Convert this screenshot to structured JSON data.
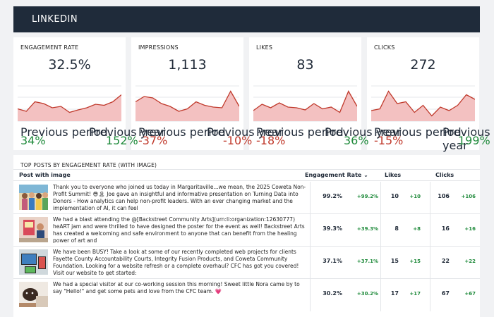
{
  "header": {
    "title": "LINKEDIN"
  },
  "cards": [
    {
      "label": "ENGAGEMENT RATE",
      "value": "32.5%",
      "prev_period_label": "Previous period",
      "prev_year_label": "Previous year",
      "prev_period_change": "34%",
      "prev_year_change": "152%",
      "prev_period_dir": "pos",
      "prev_year_dir": "pos",
      "series": [
        0.35,
        0.28,
        0.55,
        0.5,
        0.38,
        0.42,
        0.25,
        0.32,
        0.38,
        0.48,
        0.45,
        0.55,
        0.75
      ],
      "color": "#c0392b"
    },
    {
      "label": "IMPRESSIONS",
      "value": "1,113",
      "prev_period_label": "Previous period",
      "prev_year_label": "Previous year",
      "prev_period_change": "-37%",
      "prev_year_change": "-10%",
      "prev_period_dir": "neg",
      "prev_year_dir": "neg",
      "series": [
        0.55,
        0.7,
        0.66,
        0.5,
        0.42,
        0.28,
        0.35,
        0.55,
        0.45,
        0.4,
        0.38,
        0.85,
        0.42
      ],
      "color": "#c0392b"
    },
    {
      "label": "LIKES",
      "value": "83",
      "prev_period_label": "Previous period",
      "prev_year_label": "Previous year",
      "prev_period_change": "-18%",
      "prev_year_change": "36%",
      "prev_period_dir": "neg",
      "prev_year_dir": "pos",
      "series": [
        0.3,
        0.48,
        0.38,
        0.52,
        0.4,
        0.38,
        0.32,
        0.5,
        0.35,
        0.4,
        0.25,
        0.85,
        0.42
      ],
      "color": "#c0392b"
    },
    {
      "label": "CLICKS",
      "value": "272",
      "prev_period_label": "Previous period",
      "prev_year_label": "Previous year",
      "prev_period_change": "-15%",
      "prev_year_change": "199%",
      "prev_period_dir": "neg",
      "prev_year_dir": "pos",
      "series": [
        0.3,
        0.35,
        0.85,
        0.5,
        0.55,
        0.25,
        0.45,
        0.15,
        0.4,
        0.3,
        0.45,
        0.75,
        0.62
      ],
      "color": "#c0392b"
    }
  ],
  "table": {
    "title": "TOP POSTS BY ENGAGEMENT RATE (WITH IMAGE)",
    "columns": {
      "post": "Post with image",
      "engagement": "Engagement Rate",
      "sort_indicator": "⌄",
      "likes": "Likes",
      "clicks": "Clicks"
    },
    "rows": [
      {
        "text": "Thank you to everyone who joined us today in Margaritaville...we mean, the 2025 Coweta Non-Profit Summit! 😎🏝 Joe gave an insightful and informative presentation on Turning Data into Donors - How analytics can help non-profit leaders. With an ever changing market and the implementation of AI, it can feel",
        "engagement": "99.2%",
        "engagement_delta": "+99.2%",
        "likes": "10",
        "likes_delta": "+10",
        "clicks": "106",
        "clicks_delta": "+106",
        "thumb": "group-photo"
      },
      {
        "text": "We had a blast attending the @[Backstreet Community Arts](urn:li:organization:12630777) heART jam and were thrilled to have designed the poster for the event as well! Backstreet Arts has created a welcoming and safe environment to anyone that can benefit from the healing power of art and",
        "engagement": "39.3%",
        "engagement_delta": "+39.3%",
        "likes": "8",
        "likes_delta": "+8",
        "clicks": "16",
        "clicks_delta": "+16",
        "thumb": "poster-photo"
      },
      {
        "text": "We have been BUSY! Take a look at some of our recently completed web projects for clients Fayette County Accountability Courts, Integrity Fusion Products, and Coweta Community Foundation. Looking for a website refresh or a complete overhaul? CFC has got you covered! Visit our website to get started:",
        "engagement": "37.1%",
        "engagement_delta": "+37.1%",
        "likes": "15",
        "likes_delta": "+15",
        "clicks": "22",
        "clicks_delta": "+22",
        "thumb": "website-photo"
      },
      {
        "text": "We had a special visitor at our co-working session this morning! Sweet little Nora came by to say \"Hello!\" and get some pets and love from the CFC team. 💗",
        "engagement": "30.2%",
        "engagement_delta": "+30.2%",
        "likes": "17",
        "likes_delta": "+17",
        "clicks": "67",
        "clicks_delta": "+67",
        "thumb": "dog-photo"
      }
    ]
  }
}
